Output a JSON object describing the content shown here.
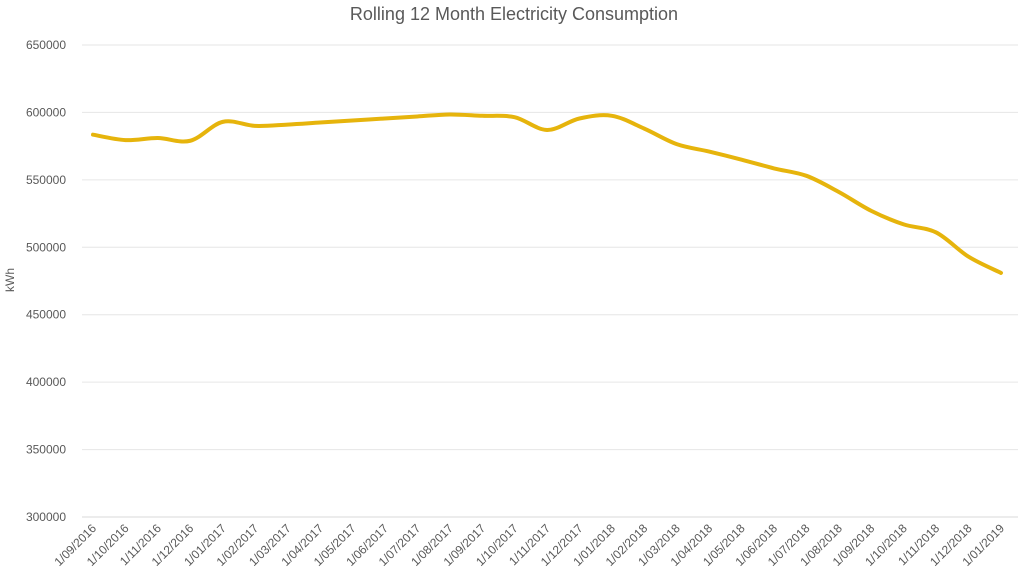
{
  "chart_data": {
    "type": "line",
    "title": "Rolling 12 Month Electricity Consumption",
    "xlabel": "",
    "ylabel": "kWh",
    "ylim": [
      300000,
      650000
    ],
    "yticks": [
      "300000",
      "350000",
      "400000",
      "450000",
      "500000",
      "550000",
      "600000",
      "650000"
    ],
    "grid": true,
    "legend": "none",
    "categories": [
      "1/09/2016",
      "1/10/2016",
      "1/11/2016",
      "1/12/2016",
      "1/01/2017",
      "1/02/2017",
      "1/03/2017",
      "1/04/2017",
      "1/05/2017",
      "1/06/2017",
      "1/07/2017",
      "1/08/2017",
      "1/09/2017",
      "1/10/2017",
      "1/11/2017",
      "1/12/2017",
      "1/01/2018",
      "1/02/2018",
      "1/03/2018",
      "1/04/2018",
      "1/05/2018",
      "1/06/2018",
      "1/07/2018",
      "1/08/2018",
      "1/09/2018",
      "1/10/2018",
      "1/11/2018",
      "1/12/2018",
      "1/01/2019"
    ],
    "series": [
      {
        "color": "#e6b40c",
        "values": [
          583500,
          579500,
          581000,
          579000,
          593000,
          590000,
          591000,
          592500,
          594000,
          595500,
          597000,
          598500,
          597500,
          596500,
          587000,
          595500,
          597500,
          588000,
          576500,
          571000,
          565000,
          558500,
          553000,
          541000,
          527000,
          517000,
          511000,
          493000,
          481000
        ]
      }
    ]
  }
}
